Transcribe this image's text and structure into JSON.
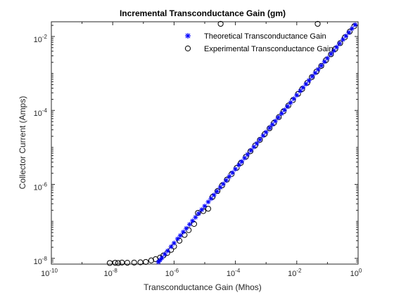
{
  "chart_data": {
    "type": "scatter",
    "title": "Incremental Transconductance Gain (gm)",
    "xlabel": "Transconductance Gain (Mhos)",
    "ylabel": "Collector Current (Amps)",
    "x_scale": "log",
    "y_scale": "log",
    "xlim": [
      1e-10,
      1
    ],
    "ylim": [
      7e-09,
      0.025
    ],
    "x_ticks": [
      {
        "value": 1e-10,
        "base": "10",
        "exp": "-10"
      },
      {
        "value": 1e-08,
        "base": "10",
        "exp": "-8"
      },
      {
        "value": 1e-06,
        "base": "10",
        "exp": "-6"
      },
      {
        "value": 0.0001,
        "base": "10",
        "exp": "-4"
      },
      {
        "value": 0.01,
        "base": "10",
        "exp": "-2"
      },
      {
        "value": 1,
        "base": "10",
        "exp": "0"
      }
    ],
    "y_ticks": [
      {
        "value": 1e-08,
        "base": "10",
        "exp": "-8"
      },
      {
        "value": 1e-06,
        "base": "10",
        "exp": "-6"
      },
      {
        "value": 0.0001,
        "base": "10",
        "exp": "-4"
      },
      {
        "value": 0.01,
        "base": "10",
        "exp": "-2"
      }
    ],
    "grid": false,
    "legend_position": "top-right",
    "colors": {
      "theoretical": "#0000ff",
      "experimental": "#000000"
    },
    "series": [
      {
        "name": "Theoretical Transconductance Gain",
        "marker": "asterisk",
        "x": [
          3.1e-07,
          3.5e-07,
          4e-07,
          5e-07,
          6.2e-07,
          8e-07,
          1e-06,
          1.3e-06,
          1.6e-06,
          2e-06,
          2.5e-06,
          3.2e-06,
          4e-06,
          5e-06,
          6.3e-06,
          8e-06,
          1e-05,
          1.3e-05,
          1.6e-05,
          2e-05,
          2.5e-05,
          3.2e-05,
          4e-05,
          5e-05,
          6.3e-05,
          8e-05,
          0.0001,
          0.00013,
          0.00016,
          0.0002,
          0.00025,
          0.00032,
          0.0004,
          0.0005,
          0.00063,
          0.0008,
          0.001,
          0.0013,
          0.0016,
          0.002,
          0.0025,
          0.0032,
          0.004,
          0.005,
          0.0063,
          0.008,
          0.01,
          0.013,
          0.016,
          0.02,
          0.025,
          0.032,
          0.04,
          0.05,
          0.063,
          0.08,
          0.1,
          0.13,
          0.16,
          0.2,
          0.25,
          0.32,
          0.4,
          0.5,
          0.63,
          0.8
        ],
        "y": [
          8e-09,
          9e-09,
          1.03e-08,
          1.29e-08,
          1.6e-08,
          2.07e-08,
          2.59e-08,
          3.36e-08,
          4.14e-08,
          5.17e-08,
          6.47e-08,
          8.28e-08,
          1.03e-07,
          1.29e-07,
          1.63e-07,
          2.07e-07,
          2.59e-07,
          3.36e-07,
          4.14e-07,
          5.17e-07,
          6.47e-07,
          8.28e-07,
          1.03e-06,
          1.29e-06,
          1.63e-06,
          2.07e-06,
          2.59e-06,
          3.36e-06,
          4.14e-06,
          5.17e-06,
          6.47e-06,
          8.28e-06,
          1.03e-05,
          1.29e-05,
          1.63e-05,
          2.07e-05,
          2.59e-05,
          3.36e-05,
          4.14e-05,
          5.17e-05,
          6.47e-05,
          8.28e-05,
          0.000103,
          0.000129,
          0.000163,
          0.000207,
          0.000259,
          0.000336,
          0.000414,
          0.000517,
          0.000647,
          0.000828,
          0.00103,
          0.00129,
          0.00163,
          0.00207,
          0.00259,
          0.00336,
          0.00414,
          0.00517,
          0.00647,
          0.00828,
          0.0103,
          0.0129,
          0.0163,
          0.0207
        ]
      },
      {
        "name": "Experimental Transconductance Gain",
        "marker": "circle",
        "x": [
          8e-09,
          1.2e-08,
          1.5e-08,
          2e-08,
          3e-08,
          5e-08,
          8e-08,
          1.2e-07,
          1.8e-07,
          2.5e-07,
          3.5e-07,
          4.5e-07,
          6e-07,
          8e-07,
          1e-06,
          1.5e-06,
          2.2e-06,
          3e-06,
          4.5e-06,
          6e-06,
          9e-06,
          1.3e-05,
          1.8e-05,
          2.6e-05,
          3.7e-05,
          5.3e-05,
          7.5e-05,
          0.00011,
          0.00015,
          0.00022,
          0.00031,
          0.00044,
          0.00063,
          0.0009,
          0.0013,
          0.0018,
          0.0026,
          0.0037,
          0.0053,
          0.0075,
          0.011,
          0.015,
          0.022,
          0.031,
          0.044,
          0.063,
          0.09,
          0.13,
          0.18,
          0.26,
          0.37,
          0.53,
          0.75,
          3.3e-05,
          0.048
        ],
        "y": [
          7.5e-09,
          7.6e-09,
          7.5e-09,
          7.7e-09,
          7.6e-09,
          7.7e-09,
          7.8e-09,
          8e-09,
          8.8e-09,
          9.5e-09,
          1.05e-08,
          1.2e-08,
          1.4e-08,
          1.7e-08,
          2.1e-08,
          3e-08,
          4.3e-08,
          5.8e-08,
          8.5e-08,
          1.7e-07,
          1.9e-07,
          2.2e-07,
          4.6e-07,
          6.6e-07,
          9.4e-07,
          1.35e-06,
          1.9e-06,
          2.8e-06,
          3.8e-06,
          5.6e-06,
          7.9e-06,
          1.13e-05,
          1.6e-05,
          2.3e-05,
          3.3e-05,
          4.6e-05,
          6.6e-05,
          9.5e-05,
          0.000135,
          0.00019,
          0.00028,
          0.00038,
          0.00056,
          0.0008,
          0.00113,
          0.0016,
          0.0023,
          0.0033,
          0.0046,
          0.0066,
          0.0095,
          0.0135,
          0.019,
          0.022,
          0.022
        ]
      }
    ]
  }
}
